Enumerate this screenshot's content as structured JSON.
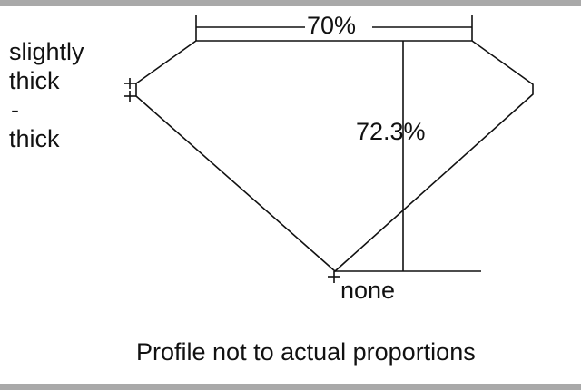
{
  "labels": {
    "table_percent": "70%",
    "depth_percent": "72.3%",
    "girdle": [
      "slightly",
      "thick",
      "-",
      "thick"
    ],
    "culet": "none",
    "note": "Profile not to actual proportions"
  },
  "colors": {
    "line": "#111111",
    "border": "#a9a9a9"
  }
}
